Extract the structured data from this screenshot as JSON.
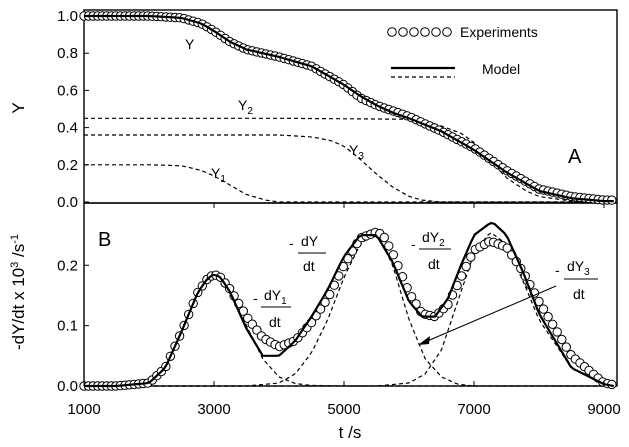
{
  "chart_data": [
    {
      "panel_label": "A",
      "type": "line",
      "ylabel": "Y",
      "xlabel": "",
      "xlim": [
        1000,
        9200
      ],
      "ylim": [
        0,
        1.0
      ],
      "yticks": [
        "0.0",
        "0.2",
        "0.4",
        "0.6",
        "0.8",
        "1.0"
      ],
      "legend": {
        "placement": "top-right",
        "entries": [
          {
            "label": "Experiments",
            "style": "open circles"
          },
          {
            "label": "Model",
            "style": "solid and dashed lines"
          }
        ]
      },
      "annotations": [
        {
          "text": "Y",
          "x": 2800,
          "y": 0.82
        },
        {
          "text": "Y",
          "sub": "2",
          "x": 3450,
          "y": 0.49
        },
        {
          "text": "Y",
          "sub": "3",
          "x": 4900,
          "y": 0.26
        },
        {
          "text": "Y",
          "sub": "1",
          "x": 3100,
          "y": 0.14
        }
      ],
      "series": [
        {
          "name": "Y",
          "role": "experiment",
          "x": [
            1000,
            1500,
            2000,
            2500,
            2800,
            3000,
            3250,
            3500,
            4000,
            4500,
            5000,
            5250,
            5500,
            5750,
            6000,
            6500,
            7000,
            7250,
            7500,
            8000,
            8500,
            9000,
            9150
          ],
          "y": [
            1.0,
            1.0,
            1.0,
            0.99,
            0.96,
            0.92,
            0.86,
            0.82,
            0.78,
            0.73,
            0.63,
            0.56,
            0.52,
            0.49,
            0.46,
            0.38,
            0.29,
            0.23,
            0.17,
            0.07,
            0.03,
            0.01,
            0.01
          ]
        },
        {
          "name": "Y",
          "role": "model",
          "x": [
            1000,
            1500,
            2000,
            2500,
            2800,
            3000,
            3250,
            3500,
            4000,
            4500,
            5000,
            5250,
            5500,
            5750,
            6000,
            6500,
            7000,
            7250,
            7500,
            8000,
            8500,
            9000,
            9150
          ],
          "y": [
            1.0,
            1.0,
            1.0,
            0.99,
            0.96,
            0.92,
            0.86,
            0.82,
            0.78,
            0.73,
            0.63,
            0.57,
            0.52,
            0.48,
            0.45,
            0.38,
            0.28,
            0.22,
            0.16,
            0.06,
            0.02,
            0.005,
            0.005
          ]
        },
        {
          "name": "Y2",
          "role": "model-component",
          "x": [
            1000,
            4000,
            6000,
            6400,
            6800,
            7000,
            7250,
            7500,
            7800,
            8000,
            8500,
            9000,
            9150
          ],
          "y": [
            0.45,
            0.45,
            0.445,
            0.42,
            0.37,
            0.32,
            0.22,
            0.13,
            0.06,
            0.03,
            0.005,
            0.0,
            0.0
          ]
        },
        {
          "name": "Y3",
          "role": "model-component",
          "x": [
            1000,
            4000,
            4500,
            4800,
            5000,
            5250,
            5500,
            5750,
            6000,
            6200,
            6500,
            7000,
            9150
          ],
          "y": [
            0.36,
            0.36,
            0.35,
            0.33,
            0.3,
            0.23,
            0.15,
            0.08,
            0.03,
            0.01,
            0.0,
            0.0,
            0.0
          ]
        },
        {
          "name": "Y1",
          "role": "model-component",
          "x": [
            1000,
            2000,
            2500,
            2800,
            3000,
            3250,
            3500,
            3800,
            4000,
            4500,
            9150
          ],
          "y": [
            0.2,
            0.2,
            0.195,
            0.17,
            0.14,
            0.09,
            0.04,
            0.01,
            0.0,
            0.0,
            0.0
          ]
        }
      ]
    },
    {
      "panel_label": "B",
      "type": "line",
      "ylabel": "-dY/dt x 10³ /s⁻¹",
      "xlabel": "t /s",
      "xlim": [
        1000,
        9200
      ],
      "ylim": [
        0,
        0.27
      ],
      "xticks": [
        "1000",
        "3000",
        "5000",
        "7000",
        "9000"
      ],
      "yticks": [
        "0.0",
        "0.1",
        "0.2"
      ],
      "annotations": [
        {
          "text": "-dY/dt"
        },
        {
          "text": "-dY1/dt"
        },
        {
          "text": "-dY2/dt"
        },
        {
          "text": "-dY3/dt"
        }
      ],
      "series": [
        {
          "name": "-dY/dt",
          "role": "experiment",
          "x": [
            1000,
            1500,
            2000,
            2250,
            2500,
            2750,
            2900,
            3000,
            3100,
            3250,
            3500,
            3750,
            4000,
            4250,
            4500,
            4750,
            5000,
            5250,
            5500,
            5600,
            5750,
            6000,
            6200,
            6400,
            6600,
            6800,
            7000,
            7250,
            7500,
            7750,
            8000,
            8500,
            9000,
            9150
          ],
          "y": [
            0.0,
            0.0,
            0.005,
            0.03,
            0.09,
            0.155,
            0.178,
            0.185,
            0.18,
            0.16,
            0.115,
            0.08,
            0.065,
            0.075,
            0.105,
            0.145,
            0.2,
            0.245,
            0.255,
            0.25,
            0.22,
            0.155,
            0.12,
            0.115,
            0.135,
            0.18,
            0.225,
            0.24,
            0.23,
            0.19,
            0.14,
            0.05,
            0.005,
            0.002
          ]
        },
        {
          "name": "-dY/dt",
          "role": "model",
          "x": [
            1000,
            1500,
            2000,
            2250,
            2500,
            2750,
            2900,
            3000,
            3100,
            3250,
            3500,
            3750,
            4000,
            4250,
            4500,
            4750,
            5000,
            5250,
            5500,
            5750,
            6000,
            6200,
            6400,
            6600,
            6800,
            7000,
            7250,
            7300,
            7500,
            7750,
            8000,
            8500,
            9000,
            9150
          ],
          "y": [
            0.0,
            0.0,
            0.005,
            0.03,
            0.09,
            0.155,
            0.178,
            0.185,
            0.18,
            0.155,
            0.095,
            0.05,
            0.05,
            0.075,
            0.115,
            0.16,
            0.215,
            0.25,
            0.25,
            0.205,
            0.14,
            0.115,
            0.115,
            0.145,
            0.2,
            0.25,
            0.27,
            0.27,
            0.25,
            0.19,
            0.12,
            0.03,
            0.003,
            0.0
          ]
        },
        {
          "name": "-dY1/dt",
          "role": "model-component",
          "x": [
            1000,
            2000,
            2250,
            2500,
            2750,
            3000,
            3250,
            3500,
            3750,
            4000,
            4250,
            4500,
            5000,
            9150
          ],
          "y": [
            0.0,
            0.005,
            0.03,
            0.09,
            0.155,
            0.185,
            0.16,
            0.1,
            0.045,
            0.015,
            0.004,
            0.001,
            0.0,
            0.0
          ]
        },
        {
          "name": "-dY3/dt",
          "role": "model-component",
          "x": [
            1000,
            3500,
            4000,
            4250,
            4500,
            4750,
            5000,
            5250,
            5500,
            5750,
            6000,
            6250,
            6500,
            6750,
            7000,
            9150
          ],
          "y": [
            0.0,
            0.0,
            0.005,
            0.02,
            0.055,
            0.11,
            0.18,
            0.235,
            0.255,
            0.2,
            0.11,
            0.045,
            0.015,
            0.003,
            0.0,
            0.0
          ]
        },
        {
          "name": "-dY2/dt",
          "role": "model-component",
          "x": [
            1000,
            5500,
            6000,
            6250,
            6500,
            6750,
            7000,
            7250,
            7500,
            7750,
            8000,
            8500,
            9000,
            9150
          ],
          "y": [
            0.0,
            0.0,
            0.005,
            0.02,
            0.06,
            0.14,
            0.22,
            0.255,
            0.235,
            0.175,
            0.11,
            0.03,
            0.003,
            0.0
          ]
        }
      ]
    }
  ]
}
